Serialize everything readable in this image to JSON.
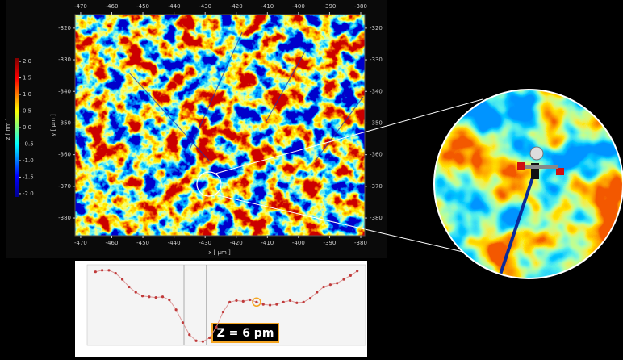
{
  "chart_data": [
    {
      "type": "heatmap",
      "xlabel": "x [ µm ]",
      "ylabel": "y [ µm ]",
      "colorbar_label": "z [ nm ]",
      "xlim": [
        -471.8,
        -378.7
      ],
      "ylim": [
        -385.6,
        -315.7
      ],
      "xticks": [
        -470,
        -460,
        -450,
        -440,
        -430,
        -420,
        -410,
        -400,
        -390,
        -380
      ],
      "yticks": [
        -320,
        -330,
        -340,
        -350,
        -360,
        -370,
        -380
      ],
      "clim": [
        -2.1,
        2.1
      ],
      "cticks": [
        {
          "value": 2,
          "label": "2.0"
        },
        1.5,
        {
          "value": 1,
          "label": "1.0"
        },
        0.5,
        {
          "value": 0,
          "label": "0.0"
        },
        -0.5,
        {
          "value": -1,
          "label": "-1.0"
        },
        -1.5,
        {
          "value": -2,
          "label": "-2.0"
        }
      ]
    },
    {
      "type": "line",
      "annotation": "Z = 6 pm",
      "color": "#c03a3a",
      "x": [
        0,
        1,
        2,
        3,
        4,
        5,
        6,
        7,
        8,
        9,
        10,
        11,
        12,
        13,
        14,
        15,
        16,
        17,
        18,
        19,
        20,
        21,
        22,
        23,
        24,
        25,
        26,
        27,
        28,
        29,
        30,
        31,
        32,
        33,
        34,
        35,
        36,
        37,
        38,
        39
      ],
      "values": [
        95,
        97,
        97,
        93,
        85,
        75,
        68,
        63,
        62,
        61,
        62,
        58,
        45,
        28,
        12,
        4,
        3,
        8,
        22,
        42,
        55,
        57,
        56,
        58,
        55,
        52,
        51,
        52,
        55,
        57,
        54,
        55,
        60,
        68,
        75,
        78,
        80,
        85,
        90,
        96
      ],
      "xlim": [
        -1,
        40
      ],
      "ylim": [
        0,
        100
      ],
      "highlight_index": 24
    }
  ]
}
